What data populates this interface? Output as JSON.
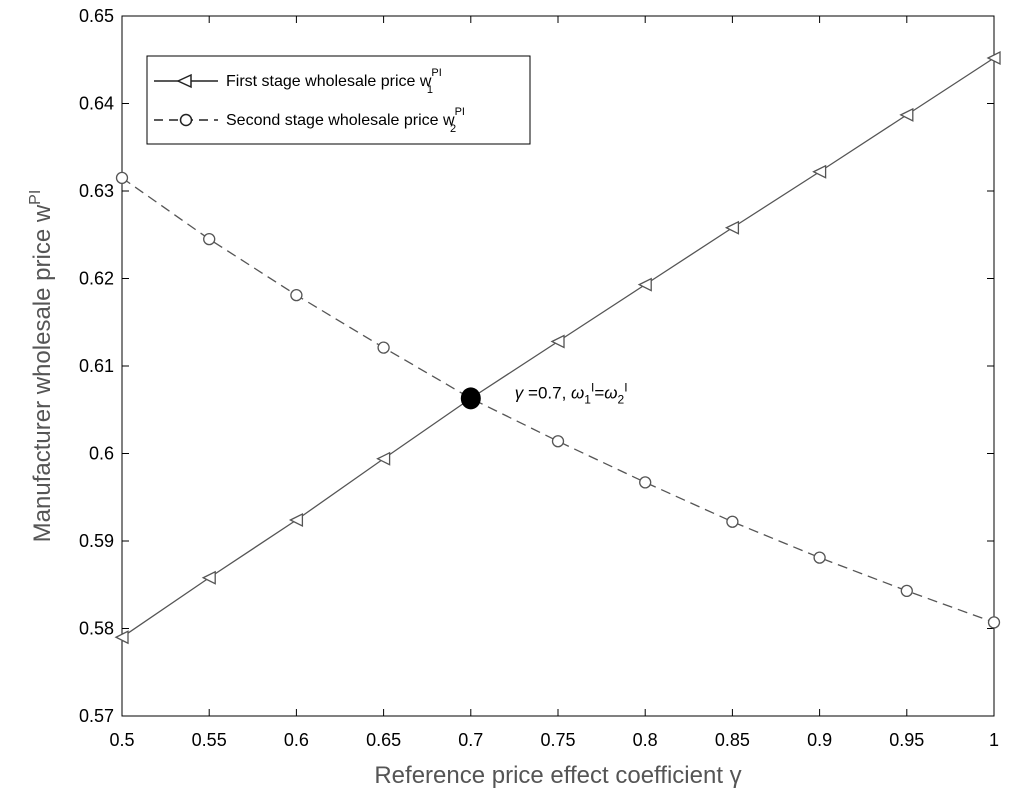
{
  "chart_data": {
    "type": "line",
    "title": "",
    "xlabel": "Reference price effect coefficient γ",
    "ylabel": {
      "base": "Manufacturer  wholesale  price  w",
      "sup": "PI"
    },
    "xlim": [
      0.5,
      1
    ],
    "ylim": [
      0.57,
      0.65
    ],
    "x_ticks": [
      "0.5",
      "0.55",
      "0.6",
      "0.65",
      "0.7",
      "0.75",
      "0.8",
      "0.85",
      "0.9",
      "0.95",
      "1"
    ],
    "y_ticks": [
      "0.57",
      "0.58",
      "0.59",
      "0.6",
      "0.61",
      "0.62",
      "0.63",
      "0.64",
      "0.65"
    ],
    "grid": false,
    "legend_position": "top-left",
    "x": [
      0.5,
      0.55,
      0.6,
      0.65,
      0.7,
      0.75,
      0.8,
      0.85,
      0.9,
      0.95,
      1.0
    ],
    "series": [
      {
        "name": "First stage wholesale price w",
        "name_sup": "PI",
        "name_sub": "1",
        "line_style": "solid",
        "marker": "triangle-left",
        "color": "#555555",
        "values": [
          0.579,
          0.5858,
          0.5924,
          0.5994,
          0.6063,
          0.6128,
          0.6193,
          0.6258,
          0.6322,
          0.6387,
          0.6452
        ]
      },
      {
        "name": "Second stage wholesale price w",
        "name_sup": "PI",
        "name_sub": "2",
        "line_style": "dashed",
        "marker": "circle",
        "color": "#555555",
        "values": [
          0.6315,
          0.6245,
          0.6181,
          0.6121,
          0.6063,
          0.6014,
          0.5967,
          0.5922,
          0.5881,
          0.5843,
          0.5807
        ]
      }
    ],
    "annotation": {
      "x": 0.7,
      "y": 0.6063,
      "gamma": "γ",
      "eq": " =0.7,  ",
      "omega": "ω",
      "sub1": "1",
      "sup1": "I",
      "equals": "=",
      "sub2": "2",
      "sup2": "I"
    }
  }
}
